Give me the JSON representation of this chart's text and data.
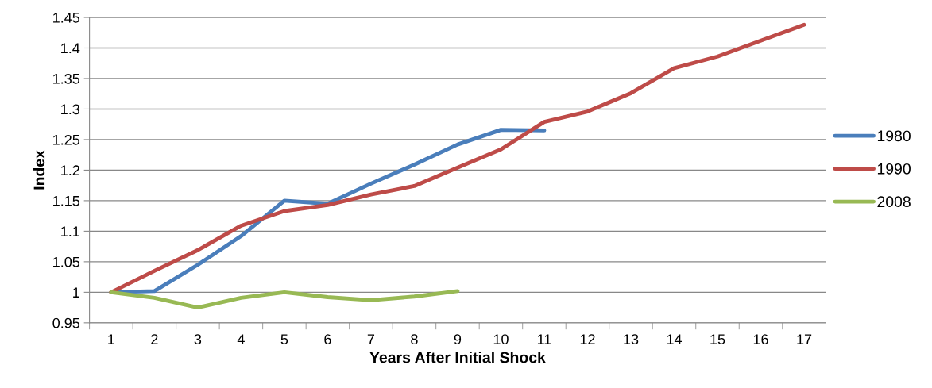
{
  "chart_data": {
    "type": "line",
    "xlabel": "Years After Initial Shock",
    "ylabel": "Index",
    "categories": [
      "1",
      "2",
      "3",
      "4",
      "5",
      "6",
      "7",
      "8",
      "9",
      "10",
      "11",
      "12",
      "13",
      "14",
      "15",
      "16",
      "17"
    ],
    "series": [
      {
        "name": "1980",
        "color": "#4a7ebb",
        "values": [
          1,
          1.002,
          1.045,
          1.092,
          1.15,
          1.145,
          1.178,
          1.209,
          1.242,
          1.266,
          1.265,
          null,
          null,
          null,
          null,
          null,
          null
        ]
      },
      {
        "name": "1990",
        "color": "#be4b48",
        "values": [
          1,
          1.035,
          1.069,
          1.109,
          1.133,
          1.143,
          1.16,
          1.174,
          1.204,
          1.234,
          1.279,
          1.296,
          1.326,
          1.367,
          1.386,
          1.412,
          1.438
        ]
      },
      {
        "name": "2008",
        "color": "#98b954",
        "values": [
          1,
          0.991,
          0.975,
          0.991,
          1.0,
          0.992,
          0.987,
          0.993,
          1.002,
          null,
          null,
          null,
          null,
          null,
          null,
          null,
          null
        ]
      }
    ],
    "ylim": [
      0.95,
      1.45
    ],
    "yticks": [
      0.95,
      1,
      1.05,
      1.1,
      1.15,
      1.2,
      1.25,
      1.3,
      1.35,
      1.4,
      1.45
    ],
    "grid": "y",
    "legend": "right",
    "marker": "none",
    "line_style": "solid"
  }
}
